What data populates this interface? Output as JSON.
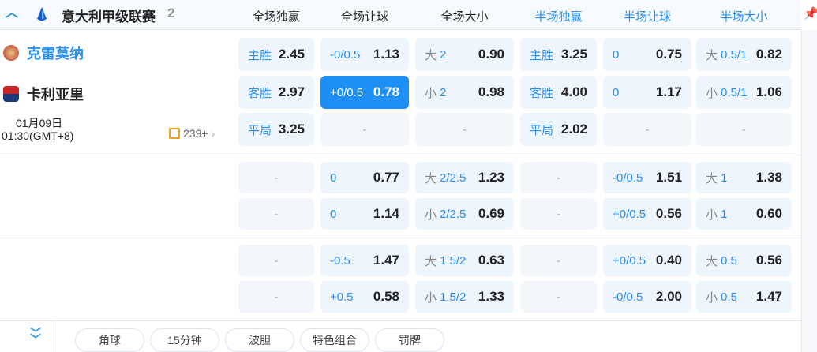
{
  "header": {
    "league": "意大利甲级联赛",
    "count": "2",
    "columns": [
      {
        "label": "全场独赢",
        "color": "#222222"
      },
      {
        "label": "全场让球",
        "color": "#222222"
      },
      {
        "label": "全场大小",
        "color": "#222222"
      },
      {
        "label": "半场独赢",
        "color": "#2a8ff0"
      },
      {
        "label": "半场让球",
        "color": "#2a8ff0"
      },
      {
        "label": "半场大小",
        "color": "#2a8ff0"
      }
    ]
  },
  "match": {
    "home": "克雷莫纳",
    "away": "卡利亚里",
    "date": "01月09日",
    "time": "01:30(GMT+8)",
    "more": "239+"
  },
  "groups": [
    [
      [
        {
          "l": "主胜",
          "v": "2.45"
        },
        {
          "l": "-0/0.5",
          "v": "1.13"
        },
        {
          "p": "大",
          "l": "2",
          "v": "0.90"
        },
        {
          "l": "主胜",
          "v": "3.25"
        },
        {
          "l": "0",
          "v": "0.75"
        },
        {
          "p": "大",
          "l": "0.5/1",
          "v": "0.82"
        }
      ],
      [
        {
          "l": "客胜",
          "v": "2.97"
        },
        {
          "l": "+0/0.5",
          "v": "0.78",
          "sel": true
        },
        {
          "p": "小",
          "l": "2",
          "v": "0.98"
        },
        {
          "l": "客胜",
          "v": "4.00"
        },
        {
          "l": "0",
          "v": "1.17"
        },
        {
          "p": "小",
          "l": "0.5/1",
          "v": "1.06"
        }
      ],
      [
        {
          "l": "平局",
          "v": "3.25"
        },
        {
          "d": "-"
        },
        {
          "d": "-"
        },
        {
          "l": "平局",
          "v": "2.02"
        },
        {
          "d": "-"
        },
        {
          "d": "-"
        }
      ]
    ],
    [
      [
        {
          "d": "-"
        },
        {
          "l": "0",
          "v": "0.77"
        },
        {
          "p": "大",
          "l": "2/2.5",
          "v": "1.23"
        },
        {
          "d": "-"
        },
        {
          "l": "-0/0.5",
          "v": "1.51"
        },
        {
          "p": "大",
          "l": "1",
          "v": "1.38"
        }
      ],
      [
        {
          "d": "-"
        },
        {
          "l": "0",
          "v": "1.14"
        },
        {
          "p": "小",
          "l": "2/2.5",
          "v": "0.69"
        },
        {
          "d": "-"
        },
        {
          "l": "+0/0.5",
          "v": "0.56"
        },
        {
          "p": "小",
          "l": "1",
          "v": "0.60"
        }
      ]
    ],
    [
      [
        {
          "d": "-"
        },
        {
          "l": "-0.5",
          "v": "1.47"
        },
        {
          "p": "大",
          "l": "1.5/2",
          "v": "0.63"
        },
        {
          "d": "-"
        },
        {
          "l": "+0/0.5",
          "v": "0.40"
        },
        {
          "p": "大",
          "l": "0.5",
          "v": "0.56"
        }
      ],
      [
        {
          "d": "-"
        },
        {
          "l": "+0.5",
          "v": "0.58"
        },
        {
          "p": "小",
          "l": "1.5/2",
          "v": "1.33"
        },
        {
          "d": "-"
        },
        {
          "l": "-0/0.5",
          "v": "2.00"
        },
        {
          "p": "小",
          "l": "0.5",
          "v": "1.47"
        }
      ]
    ]
  ],
  "footer": {
    "tabs": [
      "角球",
      "15分钟",
      "波胆",
      "特色组合",
      "罚牌"
    ]
  },
  "icons": {
    "collapse": "chevron-up-icon",
    "expand": "double-chevron-down-icon",
    "pin": "pin-icon",
    "more": "stats-icon"
  }
}
